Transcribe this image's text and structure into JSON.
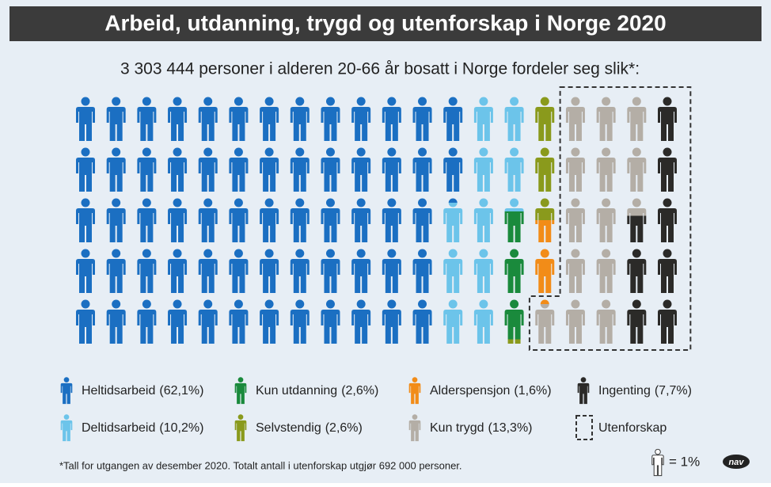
{
  "header": {
    "title": "Arbeid, utdanning, trygd og utenforskap i Norge 2020"
  },
  "chart_data": {
    "type": "pictogram",
    "subtitle": "3 303 444 personer i alderen 20-66 år bosatt i Norge fordeler seg slik*:",
    "categories": [
      "Heltidsarbeid",
      "Deltidsarbeid",
      "Kun utdanning",
      "Selvstendig",
      "Alderspensjon",
      "Kun trygd",
      "Ingenting"
    ],
    "values": [
      62.1,
      10.2,
      2.6,
      2.6,
      1.6,
      13.3,
      7.7
    ],
    "value_labels": [
      "(62,1%)",
      "(10,2%)",
      "(2,6%)",
      "(2,6%)",
      "(1,6%)",
      "(13,3%)",
      "(7,7%)"
    ],
    "colors": [
      "#1b6fc2",
      "#6cc4ea",
      "#1a8a3c",
      "#8a9a1c",
      "#f28c18",
      "#b4aea6",
      "#2b2a28"
    ],
    "outside_label": "Utenforskap",
    "unit_label": "= 1%",
    "footnote": "*Tall for utgangen av desember 2020. Totalt antall i utenforskap utgjør 692 000 personer."
  },
  "logo": "nav"
}
